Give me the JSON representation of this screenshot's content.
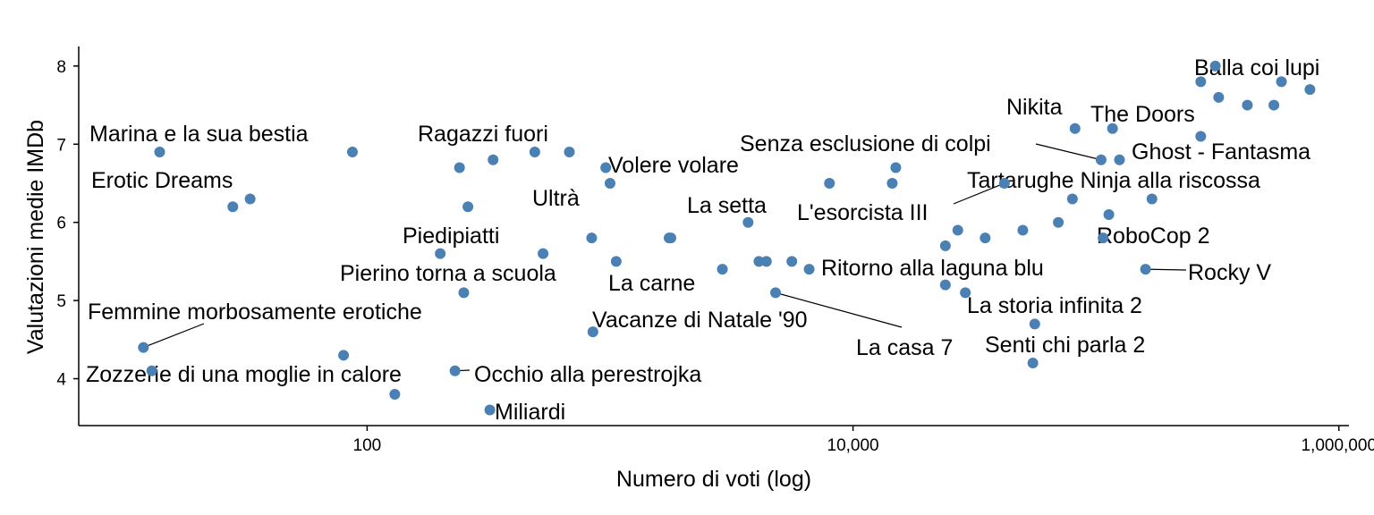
{
  "chart_data": {
    "type": "scatter",
    "title": "",
    "xlabel": "Numero di voti (log)",
    "ylabel": "Valutazioni medie IMDb",
    "x_scale": "log10",
    "xlim": [
      6.5,
      1100000
    ],
    "ylim": [
      3.4,
      8.25
    ],
    "x_ticks": [
      {
        "value": 100,
        "label": "100"
      },
      {
        "value": 10000,
        "label": "10,000"
      },
      {
        "value": 1000000,
        "label": "1,000,000"
      }
    ],
    "y_ticks": [
      {
        "value": 4,
        "label": "4"
      },
      {
        "value": 5,
        "label": "5"
      },
      {
        "value": 6,
        "label": "6"
      },
      {
        "value": 7,
        "label": "7"
      },
      {
        "value": 8,
        "label": "8"
      }
    ],
    "point_color": "#4a80b4",
    "grid": false,
    "legend": "none",
    "points": [
      {
        "x": 14,
        "y": 6.9,
        "label": "Marina e la sua bestia"
      },
      {
        "x": 87,
        "y": 6.9
      },
      {
        "x": 28,
        "y": 6.2
      },
      {
        "x": 33,
        "y": 6.3,
        "label": "Erotic Dreams"
      },
      {
        "x": 12,
        "y": 4.4,
        "label": "Femmine morbosamente erotiche"
      },
      {
        "x": 13,
        "y": 4.1,
        "label": "Zozzerie di una moglie in calore"
      },
      {
        "x": 80,
        "y": 4.3
      },
      {
        "x": 130,
        "y": 3.8
      },
      {
        "x": 230,
        "y": 4.1,
        "label": "Occhio alla perestrojka"
      },
      {
        "x": 320,
        "y": 3.6,
        "label": "Miliardi"
      },
      {
        "x": 260,
        "y": 6.2
      },
      {
        "x": 240,
        "y": 6.7
      },
      {
        "x": 330,
        "y": 6.8,
        "label": "Ragazzi fuori"
      },
      {
        "x": 490,
        "y": 6.9
      },
      {
        "x": 680,
        "y": 6.9
      },
      {
        "x": 960,
        "y": 6.7,
        "label": "Volere volare"
      },
      {
        "x": 1000,
        "y": 6.5,
        "label": "Ultrà"
      },
      {
        "x": 200,
        "y": 5.6,
        "label": "Piedipiatti"
      },
      {
        "x": 530,
        "y": 5.6
      },
      {
        "x": 840,
        "y": 5.8
      },
      {
        "x": 1060,
        "y": 5.5
      },
      {
        "x": 1750,
        "y": 5.8
      },
      {
        "x": 1780,
        "y": 5.8
      },
      {
        "x": 250,
        "y": 5.1,
        "label": "Pierino torna a scuola"
      },
      {
        "x": 850,
        "y": 4.6,
        "label": "Vacanze di Natale '90"
      },
      {
        "x": 2900,
        "y": 5.4,
        "label": "La carne"
      },
      {
        "x": 3700,
        "y": 6.0,
        "label": "La setta"
      },
      {
        "x": 4100,
        "y": 5.5
      },
      {
        "x": 4400,
        "y": 5.5
      },
      {
        "x": 5600,
        "y": 5.5
      },
      {
        "x": 4800,
        "y": 5.1,
        "label": "La casa 7"
      },
      {
        "x": 6600,
        "y": 5.4,
        "label": "Ritorno alla laguna blu"
      },
      {
        "x": 8000,
        "y": 6.5
      },
      {
        "x": 14500,
        "y": 6.5
      },
      {
        "x": 15000,
        "y": 6.7
      },
      {
        "x": 42000,
        "y": 6.5,
        "label": "L'esorcista III"
      },
      {
        "x": 24000,
        "y": 5.7
      },
      {
        "x": 24000,
        "y": 5.2
      },
      {
        "x": 27000,
        "y": 5.9
      },
      {
        "x": 29000,
        "y": 5.1
      },
      {
        "x": 35000,
        "y": 5.8
      },
      {
        "x": 50000,
        "y": 5.9
      },
      {
        "x": 56000,
        "y": 4.7,
        "label": "La storia infinita 2"
      },
      {
        "x": 55000,
        "y": 4.2,
        "label": "Senti chi parla 2"
      },
      {
        "x": 70000,
        "y": 6.0
      },
      {
        "x": 80000,
        "y": 6.3
      },
      {
        "x": 105000,
        "y": 6.8,
        "label": "Senza esclusione di colpi"
      },
      {
        "x": 82000,
        "y": 7.2,
        "label": "Nikita"
      },
      {
        "x": 113000,
        "y": 6.1
      },
      {
        "x": 107000,
        "y": 5.8,
        "label": "RoboCop 2"
      },
      {
        "x": 117000,
        "y": 7.2
      },
      {
        "x": 125000,
        "y": 6.8,
        "label": "The Doors"
      },
      {
        "x": 170000,
        "y": 6.3,
        "label": "Tartarughe Ninja alla riscossa"
      },
      {
        "x": 160000,
        "y": 5.4,
        "label": "Rocky V"
      },
      {
        "x": 270000,
        "y": 7.1,
        "label": "Ghost - Fantasma"
      },
      {
        "x": 270000,
        "y": 7.8
      },
      {
        "x": 310000,
        "y": 8.0,
        "label": "Balla coi lupi"
      },
      {
        "x": 320000,
        "y": 7.6
      },
      {
        "x": 420000,
        "y": 7.5
      },
      {
        "x": 540000,
        "y": 7.5
      },
      {
        "x": 580000,
        "y": 7.8
      },
      {
        "x": 760000,
        "y": 7.7
      }
    ]
  }
}
